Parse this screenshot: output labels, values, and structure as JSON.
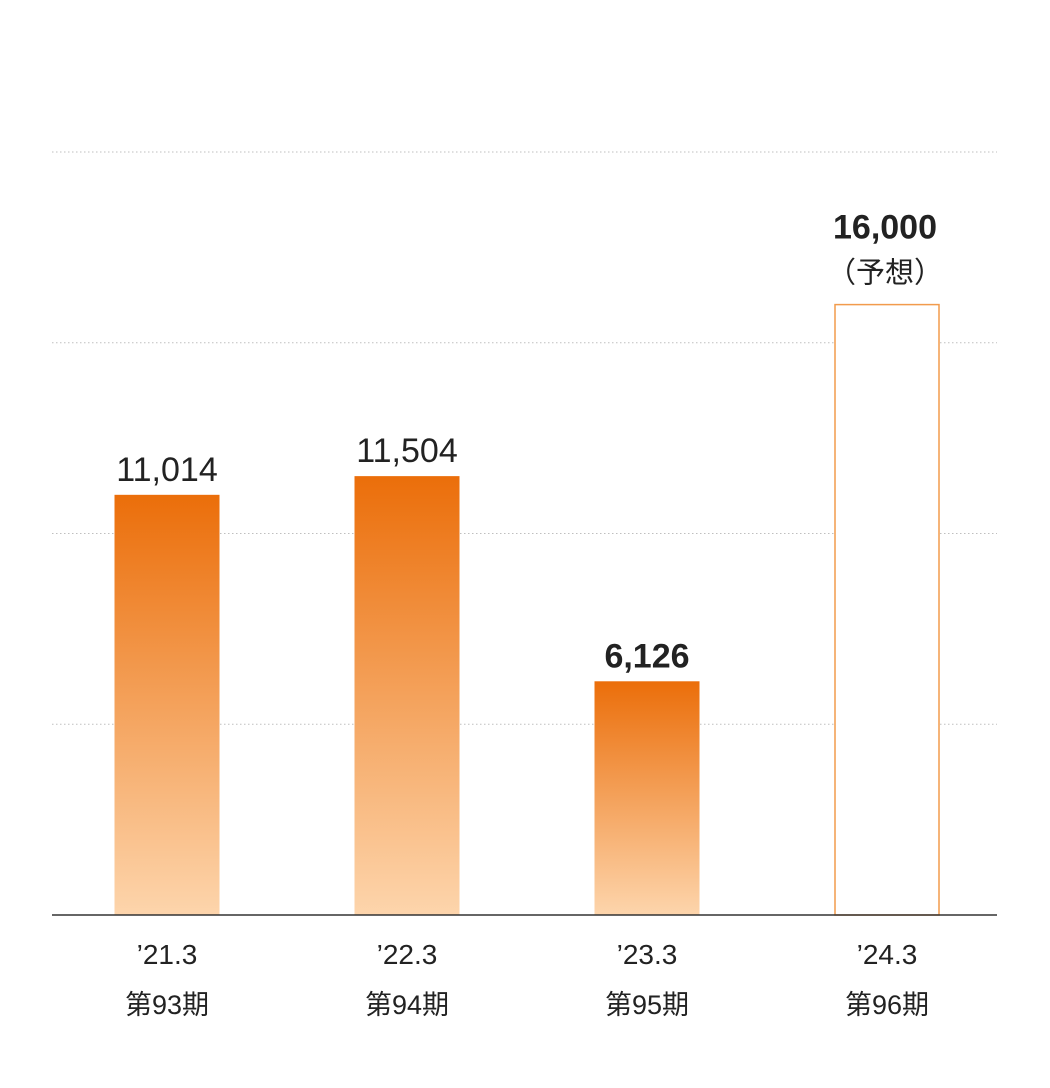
{
  "chart_data": {
    "type": "bar",
    "categories": [
      "’21.3",
      "’22.3",
      "’23.3",
      "’24.3"
    ],
    "period_labels": [
      "第93期",
      "第94期",
      "第95期",
      "第96期"
    ],
    "values": [
      11014,
      11504,
      6126,
      16000
    ],
    "value_labels": [
      "11,014",
      "11,504",
      "6,126",
      "16,000"
    ],
    "forecast": [
      false,
      false,
      false,
      true
    ],
    "forecast_note": "（予想）",
    "emphasized_labels": [
      false,
      false,
      true,
      true
    ],
    "ylim": [
      0,
      20000
    ],
    "gridlines": [
      0,
      5000,
      10000,
      15000,
      20000
    ],
    "grid": true,
    "title": "",
    "xlabel": "",
    "ylabel": "",
    "colors": {
      "bar_top": "#EB6E0A",
      "bar_bottom": "#FDD5AC",
      "forecast_outline": "#F29B4C",
      "axis": "#333333",
      "grid": "#bfbfbf",
      "text": "#222222"
    }
  }
}
